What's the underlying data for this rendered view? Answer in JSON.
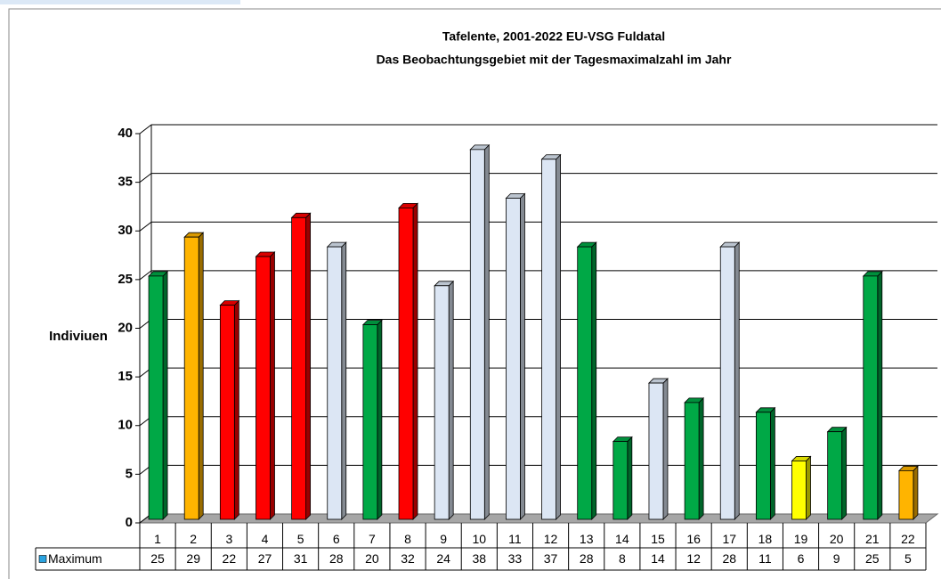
{
  "chart_data": {
    "type": "bar3d",
    "title": "Tafelente, 2001-2022 EU-VSG Fuldatal",
    "subtitle": "Das Beobachtungsgebiet mit der Tagesmaximalzahl im Jahr",
    "y_label": "Indiviuen",
    "categories": [
      "1",
      "2",
      "3",
      "4",
      "5",
      "6",
      "7",
      "8",
      "9",
      "10",
      "11",
      "12",
      "13",
      "14",
      "15",
      "16",
      "17",
      "18",
      "19",
      "20",
      "21",
      "22"
    ],
    "series": [
      {
        "name": "Maximum",
        "color": "#2aa3e0",
        "values": [
          25,
          29,
          22,
          27,
          31,
          28,
          20,
          32,
          24,
          38,
          33,
          37,
          28,
          8,
          14,
          12,
          28,
          11,
          6,
          9,
          25,
          5
        ],
        "colors": [
          "#00a846",
          "#ffb400",
          "#ff0000",
          "#ff0000",
          "#ff0000",
          "#dce6f4",
          "#00a846",
          "#ff0000",
          "#dce6f4",
          "#dce6f4",
          "#dce6f4",
          "#dce6f4",
          "#00a846",
          "#00a846",
          "#dce6f4",
          "#00a846",
          "#dce6f4",
          "#00a846",
          "#ffff00",
          "#00a846",
          "#00a846",
          "#ffb400"
        ]
      }
    ],
    "ylim": [
      0,
      40
    ],
    "yticks": [
      0,
      5,
      10,
      15,
      20,
      25,
      30,
      35,
      40
    ],
    "grid": true,
    "data_table": true
  }
}
